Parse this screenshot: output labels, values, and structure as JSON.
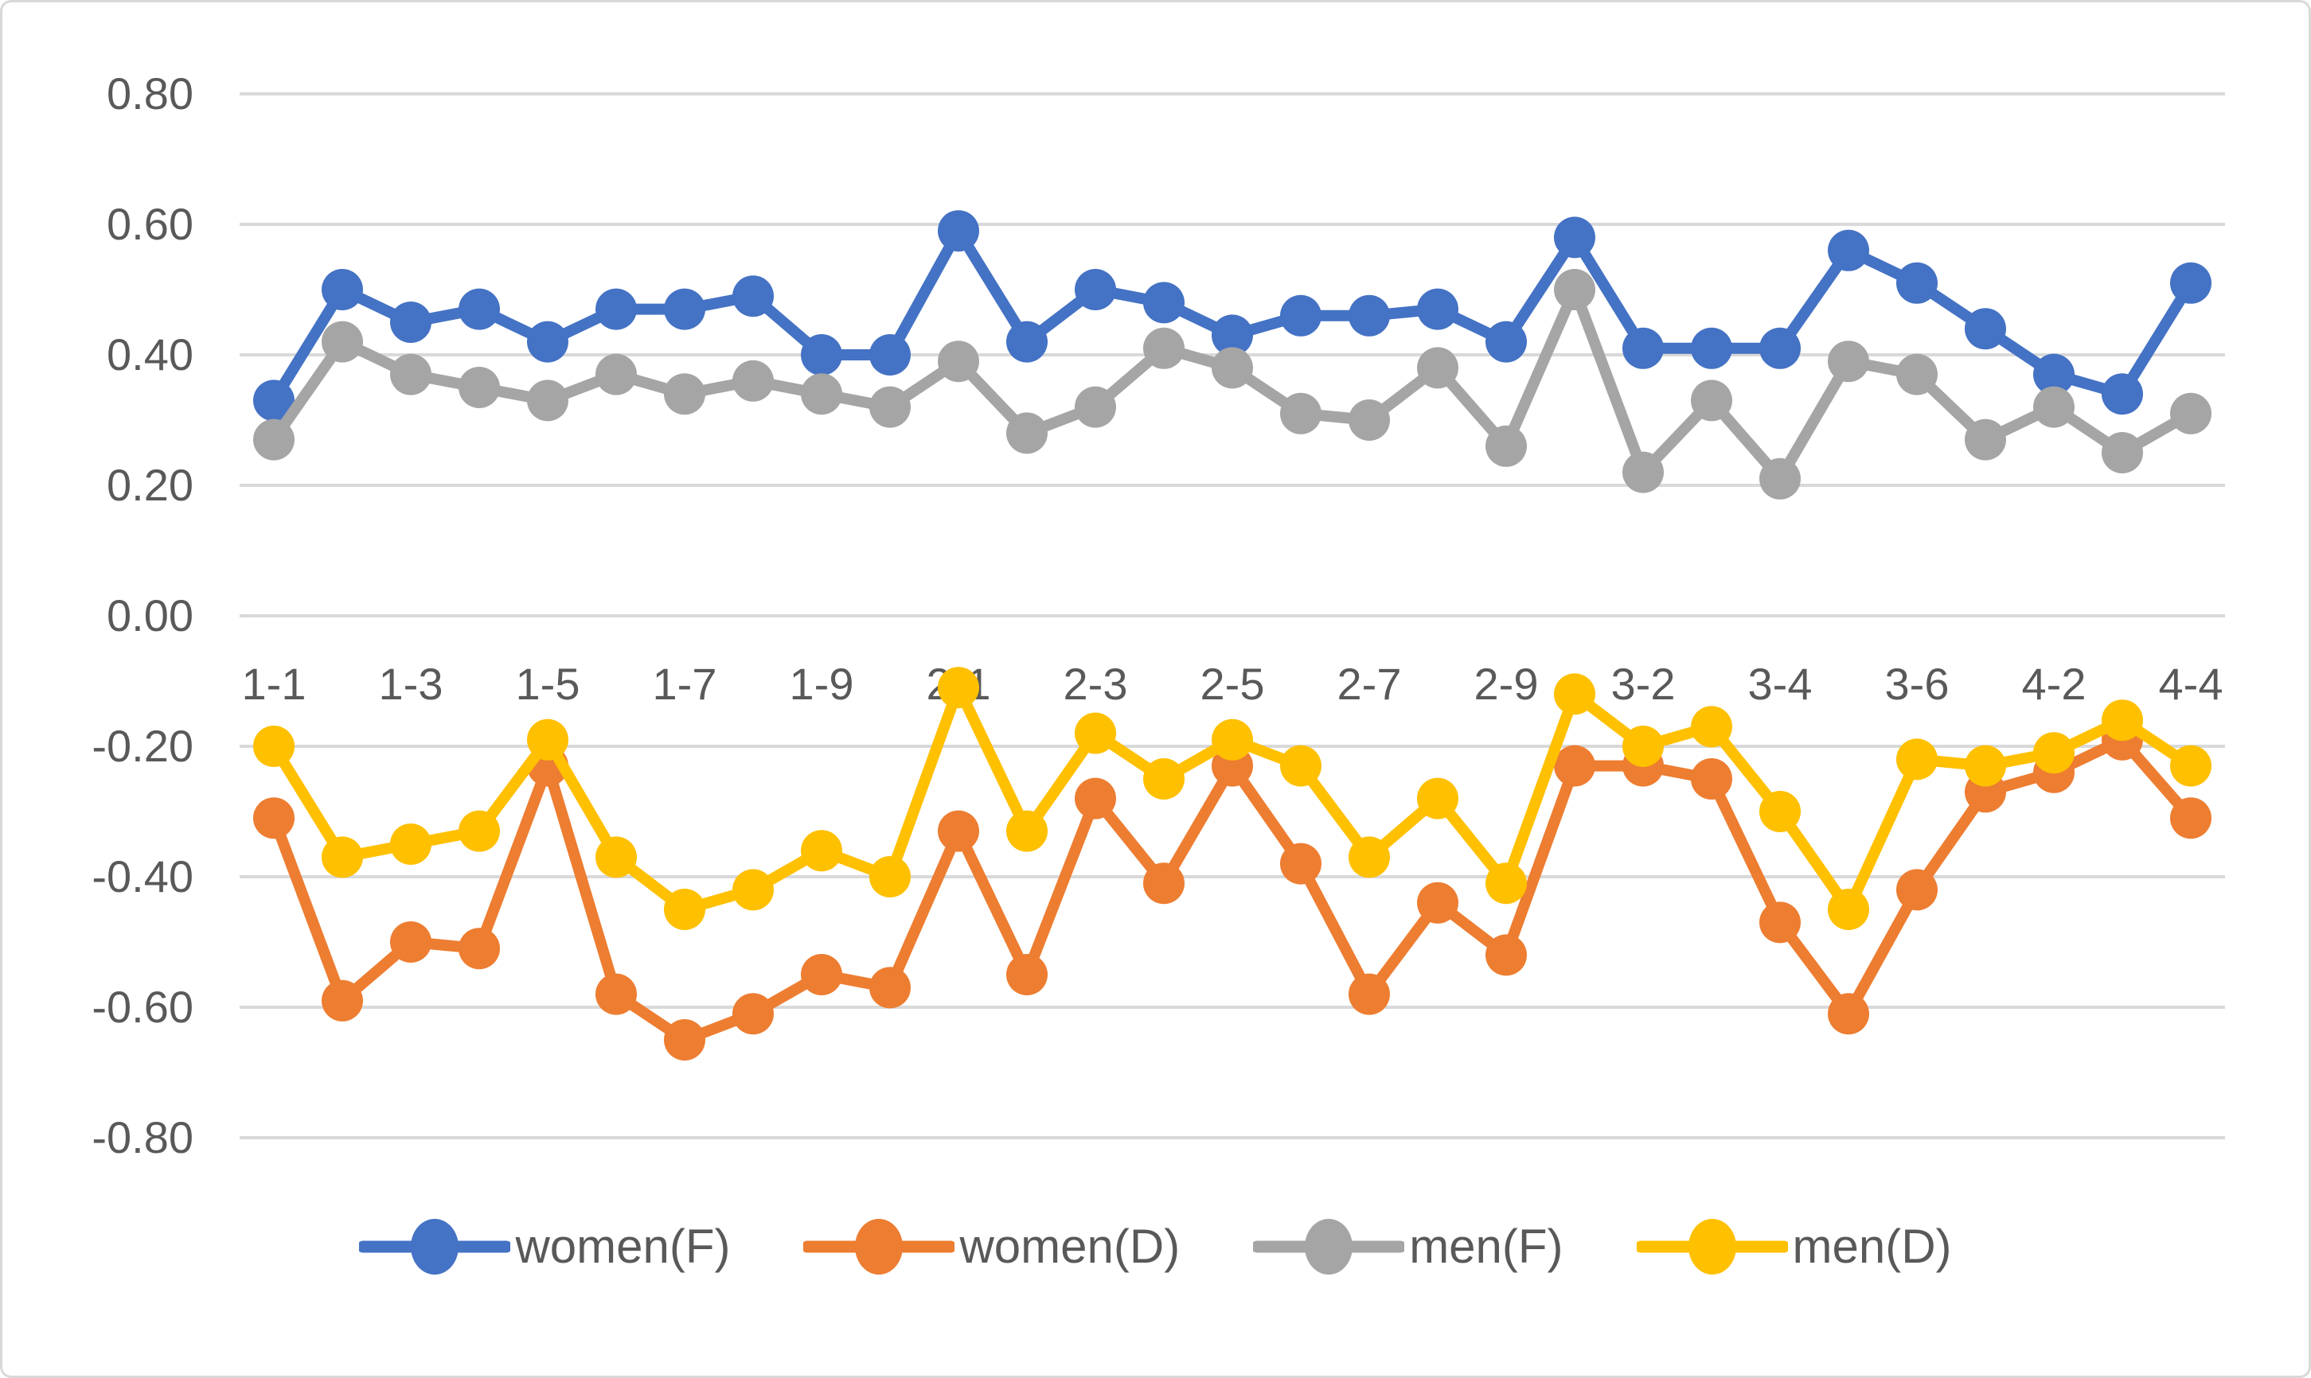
{
  "chart_data": {
    "type": "line",
    "title": "",
    "xlabel": "",
    "ylabel": "",
    "categories": [
      "1-1",
      "1-2",
      "1-3",
      "1-4",
      "1-5",
      "1-6",
      "1-7",
      "1-8",
      "1-9",
      "1-10",
      "2-1",
      "2-2",
      "2-3",
      "2-4",
      "2-5",
      "2-6",
      "2-7",
      "2-8",
      "2-9",
      "3-1",
      "3-2",
      "3-3",
      "3-4",
      "3-5",
      "3-6",
      "4-1",
      "4-2",
      "4-3",
      "4-4"
    ],
    "x_axis": {
      "tick_interval": 2,
      "visible_tick_labels": [
        "1-1",
        "1-3",
        "1-5",
        "1-7",
        "1-9",
        "2-1",
        "2-3",
        "2-5",
        "2-7",
        "2-9",
        "3-2",
        "3-4",
        "3-6",
        "4-2",
        "4-4"
      ]
    },
    "y_axis": {
      "min": -0.8,
      "max": 0.8,
      "step": 0.2,
      "tick_labels": [
        "0.80",
        "0.60",
        "0.40",
        "0.20",
        "0.00",
        "-0.20",
        "-0.40",
        "-0.60",
        "-0.80"
      ]
    },
    "grid": true,
    "legend_position": "bottom",
    "series": [
      {
        "name": "women(F)",
        "color": "#4472C4",
        "values": [
          0.33,
          0.5,
          0.45,
          0.47,
          0.42,
          0.47,
          0.47,
          0.49,
          0.4,
          0.4,
          0.59,
          0.42,
          0.5,
          0.48,
          0.43,
          0.46,
          0.46,
          0.47,
          0.42,
          0.58,
          0.41,
          0.41,
          0.41,
          0.56,
          0.51,
          0.44,
          0.37,
          0.34,
          0.51
        ]
      },
      {
        "name": "women(D)",
        "color": "#ED7D31",
        "values": [
          -0.31,
          -0.59,
          -0.5,
          -0.51,
          -0.23,
          -0.58,
          -0.65,
          -0.61,
          -0.55,
          -0.57,
          -0.33,
          -0.55,
          -0.28,
          -0.41,
          -0.23,
          -0.38,
          -0.58,
          -0.44,
          -0.52,
          -0.23,
          -0.23,
          -0.25,
          -0.47,
          -0.61,
          -0.42,
          -0.27,
          -0.24,
          -0.19,
          -0.31
        ]
      },
      {
        "name": "men(F)",
        "color": "#A5A5A5",
        "values": [
          0.27,
          0.42,
          0.37,
          0.35,
          0.33,
          0.37,
          0.34,
          0.36,
          0.34,
          0.32,
          0.39,
          0.28,
          0.32,
          0.41,
          0.38,
          0.31,
          0.3,
          0.38,
          0.26,
          0.5,
          0.22,
          0.33,
          0.21,
          0.39,
          0.37,
          0.27,
          0.32,
          0.25,
          0.31
        ]
      },
      {
        "name": "men(D)",
        "color": "#FFC000",
        "values": [
          -0.2,
          -0.37,
          -0.35,
          -0.33,
          -0.19,
          -0.37,
          -0.45,
          -0.42,
          -0.36,
          -0.4,
          -0.11,
          -0.33,
          -0.18,
          -0.25,
          -0.19,
          -0.23,
          -0.37,
          -0.28,
          -0.41,
          -0.12,
          -0.2,
          -0.17,
          -0.3,
          -0.45,
          -0.22,
          -0.23,
          -0.21,
          -0.16,
          -0.23
        ]
      }
    ],
    "colors": {
      "gridline": "#D9D9D9",
      "axis_text": "#595959",
      "background": "#FFFFFF",
      "border": "#D9D9D9"
    }
  }
}
